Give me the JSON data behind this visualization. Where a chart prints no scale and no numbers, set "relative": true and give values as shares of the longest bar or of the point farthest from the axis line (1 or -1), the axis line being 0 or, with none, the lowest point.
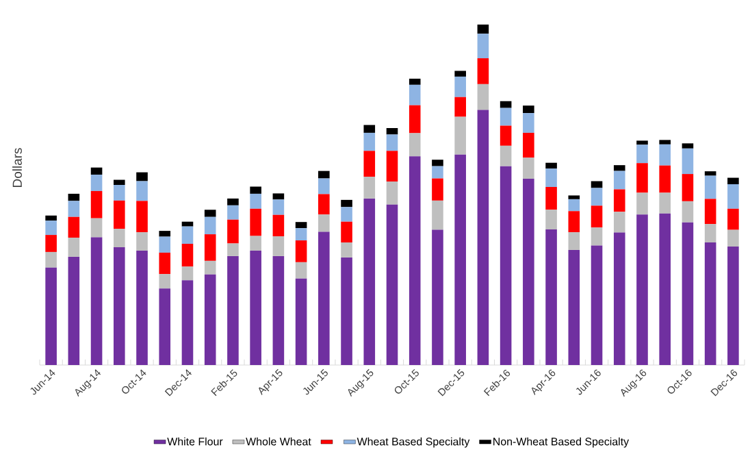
{
  "chart_data": {
    "type": "bar",
    "stacked": true,
    "relative": true,
    "ylabel": "Dollars",
    "legend": "bottom",
    "categories": [
      "Jun-14",
      null,
      "Aug-14",
      null,
      "Oct-14",
      null,
      "Dec-14",
      null,
      "Feb-15",
      null,
      "Apr-15",
      null,
      "Jun-15",
      null,
      "Aug-15",
      null,
      "Oct-15",
      null,
      "Dec-15",
      null,
      "Feb-16",
      null,
      "Apr-16",
      null,
      "Jun-16",
      null,
      "Aug-16",
      null,
      "Oct-16",
      null,
      "Dec-16"
    ],
    "series": [
      {
        "name": "White Flour",
        "color": "#7030a0",
        "values": [
          0.286,
          0.318,
          0.375,
          0.346,
          0.336,
          0.225,
          0.249,
          0.266,
          0.32,
          0.336,
          0.32,
          0.254,
          0.391,
          0.316,
          0.489,
          0.471,
          0.613,
          0.397,
          0.618,
          0.749,
          0.584,
          0.547,
          0.398,
          0.338,
          0.351,
          0.389,
          0.442,
          0.445,
          0.419,
          0.36,
          0.348
        ]
      },
      {
        "name": "Whole Wheat",
        "color": "#bfbfbf",
        "values": [
          0.046,
          0.056,
          0.056,
          0.054,
          0.054,
          0.042,
          0.04,
          0.04,
          0.037,
          0.043,
          0.058,
          0.048,
          0.051,
          0.044,
          0.064,
          0.068,
          0.068,
          0.086,
          0.111,
          0.076,
          0.06,
          0.062,
          0.058,
          0.052,
          0.053,
          0.061,
          0.064,
          0.061,
          0.062,
          0.054,
          0.049
        ]
      },
      {
        "color": "#ff0000",
        "values": [
          0.05,
          0.061,
          0.08,
          0.083,
          0.092,
          0.063,
          0.067,
          0.078,
          0.07,
          0.08,
          0.063,
          0.064,
          0.06,
          0.061,
          0.076,
          0.09,
          0.082,
          0.065,
          0.058,
          0.076,
          0.059,
          0.073,
          0.067,
          0.062,
          0.064,
          0.066,
          0.087,
          0.08,
          0.08,
          0.074,
          0.062
        ]
      },
      {
        "name": "Wheat Based Specialty",
        "color": "#8eb4e3",
        "values": [
          0.042,
          0.047,
          0.048,
          0.046,
          0.058,
          0.047,
          0.051,
          0.051,
          0.042,
          0.044,
          0.045,
          0.036,
          0.046,
          0.043,
          0.053,
          0.048,
          0.06,
          0.036,
          0.06,
          0.072,
          0.052,
          0.058,
          0.054,
          0.035,
          0.052,
          0.054,
          0.054,
          0.062,
          0.075,
          0.068,
          0.072
        ]
      },
      {
        "name": "Non-Wheat Based Specialty",
        "color": "#000000",
        "values": [
          0.015,
          0.021,
          0.021,
          0.015,
          0.026,
          0.017,
          0.014,
          0.021,
          0.02,
          0.021,
          0.018,
          0.018,
          0.022,
          0.021,
          0.023,
          0.019,
          0.018,
          0.019,
          0.017,
          0.027,
          0.02,
          0.022,
          0.017,
          0.011,
          0.02,
          0.017,
          0.012,
          0.013,
          0.015,
          0.013,
          0.019
        ]
      }
    ]
  }
}
